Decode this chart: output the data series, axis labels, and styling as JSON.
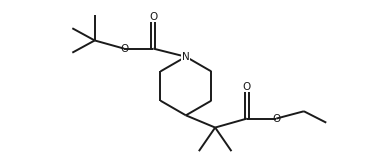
{
  "background_color": "#ffffff",
  "line_color": "#1a1a1a",
  "line_width": 1.4,
  "figsize": [
    3.88,
    1.68
  ],
  "dpi": 100,
  "xlim": [
    0.0,
    9.5
  ],
  "ylim": [
    0.2,
    4.2
  ]
}
